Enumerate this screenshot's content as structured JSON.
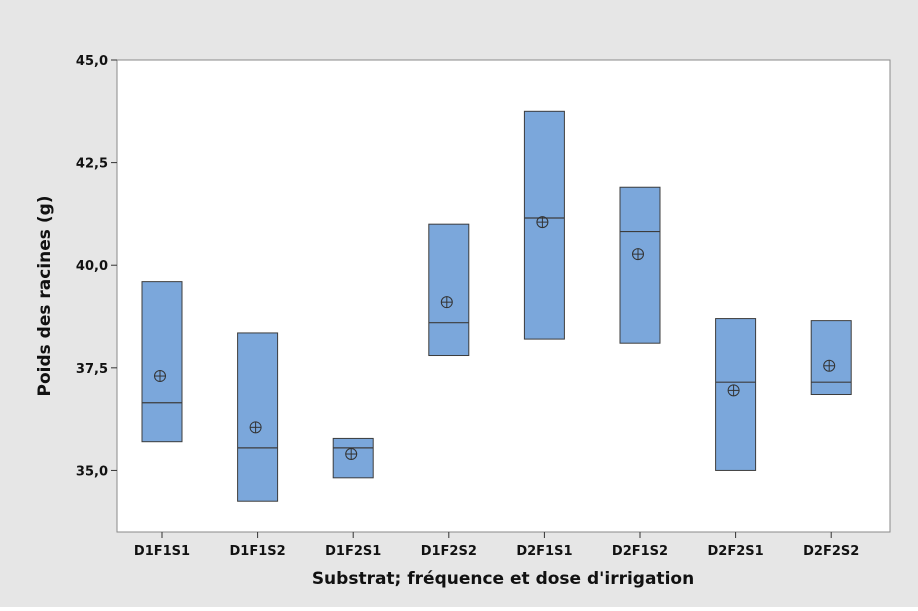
{
  "chart_data": {
    "type": "boxplot",
    "title": "",
    "xlabel": "Substrat; fréquence et dose d'irrigation",
    "ylabel": "Poids des racines (g)",
    "ylim": [
      33.5,
      45.0
    ],
    "yticks": [
      35.0,
      37.5,
      40.0,
      42.5,
      45.0
    ],
    "ytick_labels": [
      "35,0",
      "37,5",
      "40,0",
      "42,5",
      "45,0"
    ],
    "categories": [
      "D1F1S1",
      "D1F1S2",
      "D1F2S1",
      "D1F2S2",
      "D2F1S1",
      "D2F1S2",
      "D2F2S1",
      "D2F2S2"
    ],
    "boxes": [
      {
        "q1": 35.7,
        "median": 36.65,
        "q3": 39.6,
        "mean": 37.3
      },
      {
        "q1": 34.25,
        "median": 35.55,
        "q3": 38.35,
        "mean": 36.05
      },
      {
        "q1": 34.82,
        "median": 35.55,
        "q3": 35.78,
        "mean": 35.4
      },
      {
        "q1": 37.8,
        "median": 38.6,
        "q3": 41.0,
        "mean": 39.1
      },
      {
        "q1": 38.2,
        "median": 41.15,
        "q3": 43.75,
        "mean": 41.05
      },
      {
        "q1": 38.1,
        "median": 40.82,
        "q3": 41.9,
        "mean": 40.27
      },
      {
        "q1": 35.0,
        "median": 37.15,
        "q3": 38.7,
        "mean": 36.95
      },
      {
        "q1": 36.85,
        "median": 37.15,
        "q3": 38.65,
        "mean": 37.55
      }
    ],
    "colors": {
      "box_fill": "#7ba7db",
      "box_stroke": "#3c3c3c",
      "outer_background": "#e6e6e6",
      "plot_background": "#ffffff"
    },
    "grid": false,
    "legend": "none"
  }
}
